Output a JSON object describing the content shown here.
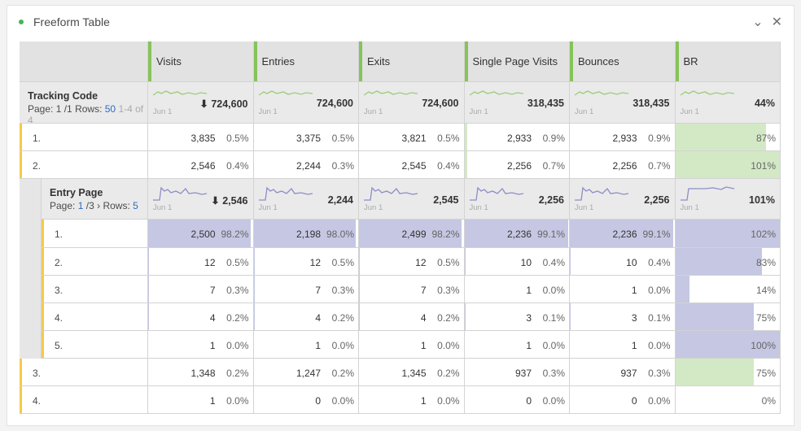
{
  "panel": {
    "title": "Freeform Table",
    "status_color": "#44b556",
    "collapse_icon": "chevron-down-icon",
    "close_icon": "close-icon"
  },
  "columns": [
    "Visits",
    "Entries",
    "Exits",
    "Single Page Visits",
    "Bounces",
    "BR"
  ],
  "colors": {
    "green_bar": "#d3e9c5",
    "purple_bar": "#c5c7e3",
    "green_spark": "#9ccd7a",
    "purple_spark": "#8c8dc8",
    "row_marker": "#f7c948"
  },
  "tracking": {
    "title": "Tracking Code",
    "page_label": "Page:",
    "page": "1 /1",
    "rows_label": "Rows:",
    "rows": "50",
    "range": "1-4 of 4",
    "spark_label": "Jun 1",
    "totals": [
      "724,600",
      "724,600",
      "724,600",
      "318,435",
      "318,435",
      "44%"
    ],
    "sort_icon": "arrow-down-icon"
  },
  "outer_rows": [
    {
      "rank": "1.",
      "cells": [
        [
          "3,835",
          "0.5%"
        ],
        [
          "3,375",
          "0.5%"
        ],
        [
          "3,821",
          "0.5%"
        ],
        [
          "2,933",
          "0.9%"
        ],
        [
          "2,933",
          "0.9%"
        ],
        [
          "",
          "87%"
        ]
      ],
      "br": 87
    },
    {
      "rank": "2.",
      "cells": [
        [
          "2,546",
          "0.4%"
        ],
        [
          "2,244",
          "0.3%"
        ],
        [
          "2,545",
          "0.4%"
        ],
        [
          "2,256",
          "0.7%"
        ],
        [
          "2,256",
          "0.7%"
        ],
        [
          "",
          "101%"
        ]
      ],
      "br": 101
    },
    {
      "rank": "3.",
      "cells": [
        [
          "1,348",
          "0.2%"
        ],
        [
          "1,247",
          "0.2%"
        ],
        [
          "1,345",
          "0.2%"
        ],
        [
          "937",
          "0.3%"
        ],
        [
          "937",
          "0.3%"
        ],
        [
          "",
          "75%"
        ]
      ],
      "br": 75
    },
    {
      "rank": "4.",
      "cells": [
        [
          "1",
          "0.0%"
        ],
        [
          "0",
          "0.0%"
        ],
        [
          "1",
          "0.0%"
        ],
        [
          "0",
          "0.0%"
        ],
        [
          "0",
          "0.0%"
        ],
        [
          "",
          "0%"
        ]
      ],
      "br": 0
    }
  ],
  "entry": {
    "title": "Entry Page",
    "page_label": "Page:",
    "page_cur": "1",
    "page_total": "/3",
    "rows_label": "Rows:",
    "rows": "5",
    "spark_label": "Jun 1",
    "totals": [
      "2,546",
      "2,244",
      "2,545",
      "2,256",
      "2,256",
      "101%"
    ]
  },
  "inner_rows": [
    {
      "rank": "1.",
      "cells": [
        [
          "2,500",
          "98.2%"
        ],
        [
          "2,198",
          "98.0%"
        ],
        [
          "2,499",
          "98.2%"
        ],
        [
          "2,236",
          "99.1%"
        ],
        [
          "2,236",
          "99.1%"
        ],
        [
          "",
          "102%"
        ]
      ],
      "pcts": [
        98.2,
        98.0,
        98.2,
        99.1,
        99.1,
        102
      ]
    },
    {
      "rank": "2.",
      "cells": [
        [
          "12",
          "0.5%"
        ],
        [
          "12",
          "0.5%"
        ],
        [
          "12",
          "0.5%"
        ],
        [
          "10",
          "0.4%"
        ],
        [
          "10",
          "0.4%"
        ],
        [
          "",
          "83%"
        ]
      ],
      "pcts": [
        0.5,
        0.5,
        0.5,
        0.4,
        0.4,
        83
      ]
    },
    {
      "rank": "3.",
      "cells": [
        [
          "7",
          "0.3%"
        ],
        [
          "7",
          "0.3%"
        ],
        [
          "7",
          "0.3%"
        ],
        [
          "1",
          "0.0%"
        ],
        [
          "1",
          "0.0%"
        ],
        [
          "",
          "14%"
        ]
      ],
      "pcts": [
        0.3,
        0.3,
        0.3,
        0,
        0,
        14
      ]
    },
    {
      "rank": "4.",
      "cells": [
        [
          "4",
          "0.2%"
        ],
        [
          "4",
          "0.2%"
        ],
        [
          "4",
          "0.2%"
        ],
        [
          "3",
          "0.1%"
        ],
        [
          "3",
          "0.1%"
        ],
        [
          "",
          "75%"
        ]
      ],
      "pcts": [
        0.2,
        0.2,
        0.2,
        0.1,
        0.1,
        75
      ]
    },
    {
      "rank": "5.",
      "cells": [
        [
          "1",
          "0.0%"
        ],
        [
          "1",
          "0.0%"
        ],
        [
          "1",
          "0.0%"
        ],
        [
          "1",
          "0.0%"
        ],
        [
          "1",
          "0.0%"
        ],
        [
          "",
          "100%"
        ]
      ],
      "pcts": [
        0,
        0,
        0,
        0,
        0,
        100
      ]
    }
  ]
}
